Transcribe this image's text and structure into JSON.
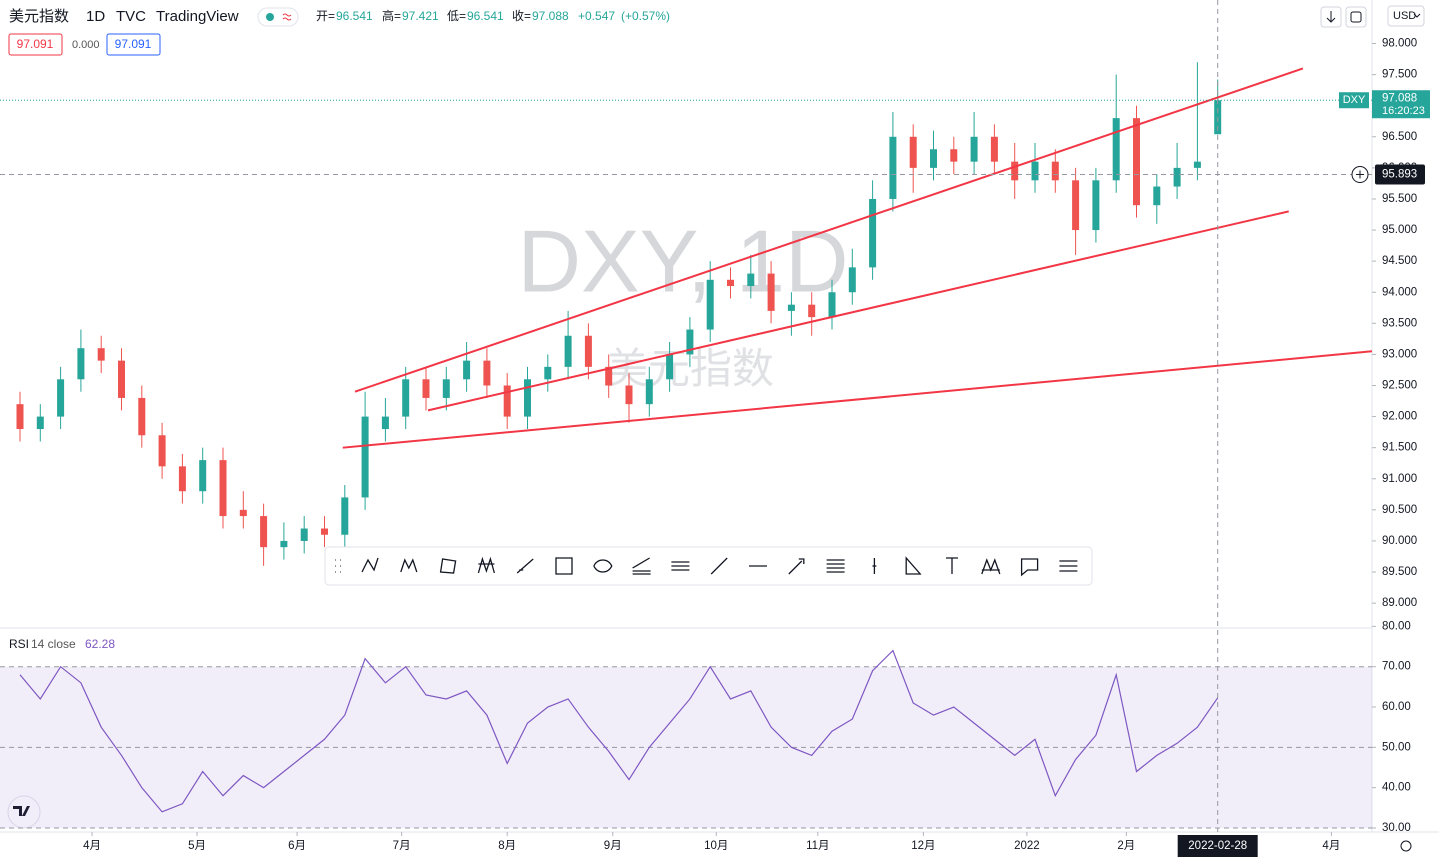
{
  "header": {
    "symbol": "美元指数",
    "interval": "1D",
    "exchange": "TVC",
    "source": "TradingView",
    "open_label": "开=",
    "open": "96.541",
    "high_label": "高=",
    "high": "97.421",
    "low_label": "低=",
    "low": "96.541",
    "close_label": "收=",
    "close": "97.088",
    "change": "+0.547",
    "change_pct": "(+0.57%)",
    "currency": "USD"
  },
  "indicators": {
    "value_a": "97.091",
    "diff": "0.000",
    "value_b": "97.091"
  },
  "watermark": {
    "main": "DXY, 1D",
    "sub": "美元指数"
  },
  "price_tag": {
    "ticker": "DXY",
    "price": "97.088",
    "countdown": "16:20:23"
  },
  "crosshair": {
    "price": 95.893,
    "date": "2022-02-28",
    "index": 59
  },
  "chart_data": {
    "type": "candlestick",
    "up_color": "#26a69a",
    "down_color": "#ef5350",
    "ohlc": [
      [
        92.2,
        92.4,
        91.6,
        91.8
      ],
      [
        91.8,
        92.2,
        91.6,
        92.0
      ],
      [
        92.0,
        92.8,
        91.8,
        92.6
      ],
      [
        92.6,
        93.4,
        92.4,
        93.1
      ],
      [
        93.1,
        93.3,
        92.7,
        92.9
      ],
      [
        92.9,
        93.1,
        92.1,
        92.3
      ],
      [
        92.3,
        92.5,
        91.5,
        91.7
      ],
      [
        91.7,
        91.9,
        91.0,
        91.2
      ],
      [
        91.2,
        91.4,
        90.6,
        90.8
      ],
      [
        90.8,
        91.5,
        90.6,
        91.3
      ],
      [
        91.3,
        91.5,
        90.2,
        90.4
      ],
      [
        90.5,
        90.8,
        90.2,
        90.4
      ],
      [
        90.4,
        90.6,
        89.6,
        89.9
      ],
      [
        89.9,
        90.3,
        89.7,
        90.0
      ],
      [
        90.0,
        90.4,
        89.8,
        90.2
      ],
      [
        90.2,
        90.4,
        89.9,
        90.1
      ],
      [
        90.1,
        90.9,
        89.9,
        90.7
      ],
      [
        90.7,
        92.4,
        90.5,
        92.0
      ],
      [
        91.8,
        92.3,
        91.6,
        92.0
      ],
      [
        92.0,
        92.8,
        91.8,
        92.6
      ],
      [
        92.6,
        92.8,
        92.1,
        92.3
      ],
      [
        92.3,
        92.8,
        92.1,
        92.6
      ],
      [
        92.6,
        93.2,
        92.4,
        92.9
      ],
      [
        92.9,
        93.1,
        92.3,
        92.5
      ],
      [
        92.5,
        92.7,
        91.8,
        92.0
      ],
      [
        92.0,
        92.8,
        91.8,
        92.6
      ],
      [
        92.6,
        93.0,
        92.4,
        92.8
      ],
      [
        92.8,
        93.7,
        92.6,
        93.3
      ],
      [
        93.3,
        93.5,
        92.6,
        92.8
      ],
      [
        92.8,
        93.0,
        92.3,
        92.5
      ],
      [
        92.5,
        92.7,
        91.9,
        92.2
      ],
      [
        92.2,
        92.8,
        92.0,
        92.6
      ],
      [
        92.6,
        93.2,
        92.4,
        93.0
      ],
      [
        93.0,
        93.6,
        92.8,
        93.4
      ],
      [
        93.4,
        94.5,
        93.2,
        94.2
      ],
      [
        94.2,
        94.4,
        93.9,
        94.1
      ],
      [
        94.1,
        94.6,
        93.9,
        94.3
      ],
      [
        94.3,
        94.5,
        93.5,
        93.7
      ],
      [
        93.7,
        94.0,
        93.3,
        93.8
      ],
      [
        93.8,
        94.0,
        93.3,
        93.6
      ],
      [
        93.6,
        94.2,
        93.4,
        94.0
      ],
      [
        94.0,
        94.7,
        93.8,
        94.4
      ],
      [
        94.4,
        95.8,
        94.2,
        95.5
      ],
      [
        95.5,
        96.9,
        95.3,
        96.5
      ],
      [
        96.5,
        96.7,
        95.6,
        96.0
      ],
      [
        96.0,
        96.6,
        95.8,
        96.3
      ],
      [
        96.3,
        96.5,
        95.9,
        96.1
      ],
      [
        96.1,
        96.9,
        95.9,
        96.5
      ],
      [
        96.5,
        96.7,
        95.9,
        96.1
      ],
      [
        96.1,
        96.4,
        95.5,
        95.8
      ],
      [
        95.8,
        96.4,
        95.6,
        96.1
      ],
      [
        96.1,
        96.3,
        95.6,
        95.8
      ],
      [
        95.8,
        96.0,
        94.6,
        95.0
      ],
      [
        95.0,
        96.0,
        94.8,
        95.8
      ],
      [
        95.8,
        97.5,
        95.6,
        96.8
      ],
      [
        96.8,
        97.0,
        95.2,
        95.4
      ],
      [
        95.4,
        95.9,
        95.1,
        95.7
      ],
      [
        95.7,
        96.4,
        95.5,
        96.0
      ],
      [
        96.0,
        97.7,
        95.8,
        96.1
      ],
      [
        96.541,
        97.421,
        96.541,
        97.088
      ]
    ],
    "ylim": [
      88.6,
      98.7
    ],
    "yticks": [
      {
        "value": 98,
        "label": "98.000"
      },
      {
        "value": 97.5,
        "label": "97.500"
      },
      {
        "value": 97,
        "label": "97.000"
      },
      {
        "value": 96.5,
        "label": "96.500"
      },
      {
        "value": 96,
        "label": "96.000"
      },
      {
        "value": 95.5,
        "label": "95.500"
      },
      {
        "value": 95,
        "label": "95.000"
      },
      {
        "value": 94.5,
        "label": "94.500"
      },
      {
        "value": 94,
        "label": "94.000"
      },
      {
        "value": 93.5,
        "label": "93.500"
      },
      {
        "value": 93,
        "label": "93.000"
      },
      {
        "value": 92.5,
        "label": "92.500"
      },
      {
        "value": 92,
        "label": "92.000"
      },
      {
        "value": 91.5,
        "label": "91.500"
      },
      {
        "value": 91,
        "label": "91.000"
      },
      {
        "value": 90.5,
        "label": "90.500"
      },
      {
        "value": 90,
        "label": "90.000"
      },
      {
        "value": 89.5,
        "label": "89.500"
      },
      {
        "value": 89,
        "label": "89.000"
      }
    ],
    "trendlines": [
      [
        [
          16.5,
          92.4
        ],
        [
          63.2,
          97.6
        ]
      ],
      [
        [
          20.1,
          92.1
        ],
        [
          62.5,
          95.3
        ]
      ],
      [
        [
          15.9,
          91.5
        ],
        [
          66.6,
          93.05
        ]
      ]
    ],
    "trendline_color": "#f23645",
    "time_ticks": [
      {
        "index": 3.55,
        "label": "4月"
      },
      {
        "index": 8.72,
        "label": "5月"
      },
      {
        "index": 13.65,
        "label": "6月"
      },
      {
        "index": 18.8,
        "label": "7月"
      },
      {
        "index": 24.0,
        "label": "8月"
      },
      {
        "index": 29.2,
        "label": "9月"
      },
      {
        "index": 34.3,
        "label": "10月"
      },
      {
        "index": 39.3,
        "label": "11月"
      },
      {
        "index": 44.5,
        "label": "12月"
      },
      {
        "index": 49.6,
        "label": "2022"
      },
      {
        "index": 54.5,
        "label": "2月"
      },
      {
        "index": 64.6,
        "label": "4月"
      }
    ]
  },
  "rsi": {
    "name": "RSI",
    "params": "14 close",
    "last": "62.28",
    "color": "#7e57c2",
    "values": [
      68,
      62,
      70,
      66,
      55,
      48,
      40,
      34,
      36,
      44,
      38,
      43,
      40,
      44,
      48,
      52,
      58,
      72,
      66,
      70,
      63,
      62,
      64,
      58,
      46,
      56,
      60,
      62,
      55,
      49,
      42,
      50,
      56,
      62,
      70,
      62,
      64,
      55,
      50,
      48,
      54,
      57,
      69,
      74,
      61,
      58,
      60,
      56,
      52,
      48,
      52,
      38,
      47,
      53,
      68,
      44,
      48,
      51,
      55,
      62.28
    ],
    "ylim": [
      79.6,
      29
    ],
    "yticks": [
      {
        "value": 80,
        "label": "80.00"
      },
      {
        "value": 70,
        "label": "70.00"
      },
      {
        "value": 60,
        "label": "60.00"
      },
      {
        "value": 50,
        "label": "50.00"
      },
      {
        "value": 40,
        "label": "40.00"
      },
      {
        "value": 30,
        "label": "30.00"
      }
    ],
    "bands": [
      70,
      50,
      30
    ]
  }
}
